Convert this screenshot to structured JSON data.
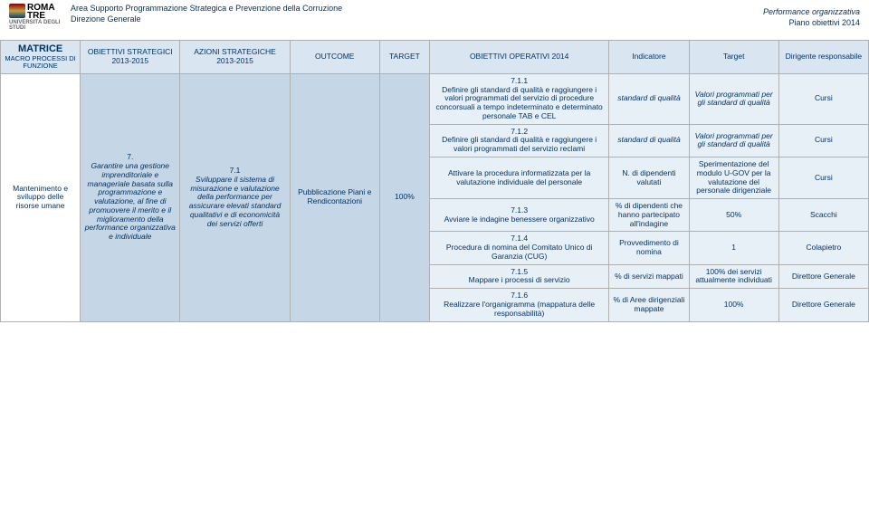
{
  "header": {
    "logo_roma": "ROMA",
    "logo_tre": "TRE",
    "logo_sub": "UNIVERSITÀ DEGLI STUDI",
    "line1": "Area Supporto Programmazione Strategica e Prevenzione della Corruzione",
    "line2": "Direzione Generale",
    "right1": "Performance organizzativa",
    "right2": "Piano obiettivi 2014"
  },
  "columns": {
    "c0_title": "MATRICE",
    "c0_sub": "MACRO PROCESSI DI FUNZIONE",
    "c1": "OBIETTIVI STRATEGICI 2013-2015",
    "c2": "AZIONI STRATEGICHE 2013-2015",
    "c3": "OUTCOME",
    "c4": "TARGET",
    "c5": "OBIETTIVI OPERATIVI 2014",
    "c6": "Indicatore",
    "c7": "Target",
    "c8": "Dirigente responsabile"
  },
  "row_span": {
    "matrice": "Mantenimento e sviluppo delle risorse umane",
    "obiettivo7_num": "7.",
    "obiettivo7": "Garantire una gestione imprenditoriale e manageriale basata sulla programmazione e valutazione, al fine di promuovere il merito e il miglioramento della performance organizzativa e individuale",
    "azione71_num": "7.1",
    "azione71": "Sviluppare il sistema di misurazione e valutazione della performance per assicurare elevati standard qualitativi e di economicità dei servizi offerti",
    "outcome": "Pubblicazione Piani e Rendicontazioni",
    "target1": "100%"
  },
  "rows": [
    {
      "op_num": "7.1.1",
      "op": "Definire gli standard di qualità e raggiungere i valori programmati del servizio di procedure concorsuali a tempo indeterminato e determinato personale TAB e CEL",
      "indic": "standard di qualità",
      "target": "Valori programmati per gli standard di qualità",
      "dir": "Cursi"
    },
    {
      "op_num": "7.1.2",
      "op": "Definire gli standard di qualità e raggiungere i valori programmati del servizio reclami",
      "indic": "standard di qualità",
      "target": "Valori programmati per gli standard di qualità",
      "dir": "Cursi"
    },
    {
      "op_num": "",
      "op": "Attivare la procedura informatizzata per la valutazione individuale del personale",
      "indic": "N. di dipendenti valutati",
      "target": "Sperimentazione del modulo U-GOV per la valutazione del personale dirigenziale",
      "dir": "Cursi"
    },
    {
      "op_num": "7.1.3",
      "op": "Avviare le indagine benessere organizzativo",
      "indic": "% di dipendenti che hanno partecipato all'indagine",
      "target": "50%",
      "dir": "Scacchi"
    },
    {
      "op_num": "7.1.4",
      "op": "Procedura di nomina del Comitato Unico di Garanzia (CUG)",
      "indic": "Provvedimento di nomina",
      "target": "1",
      "dir": "Colapietro"
    },
    {
      "op_num": "7.1.5",
      "op": "Mappare i processi di servizio",
      "indic": "% di servizi mappati",
      "target": "100% dei servizi attualmente individuati",
      "dir": "Direttore Generale"
    },
    {
      "op_num": "7.1.6",
      "op": "Realizzare l'organigramma (mappatura delle responsabilità)",
      "indic": "% di Aree dirigenziali mappate",
      "target": "100%",
      "dir": "Direttore Generale"
    }
  ]
}
